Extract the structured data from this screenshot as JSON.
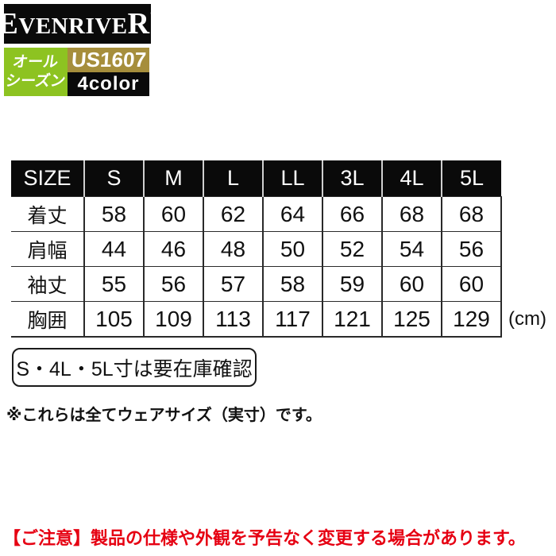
{
  "brand": {
    "logo_first": "E",
    "logo_mid": "VENRIVE",
    "logo_last": "R",
    "registered_mark": "®"
  },
  "badges": {
    "season_line1": "オール",
    "season_line2": "シーズン",
    "model": "US1607",
    "color_count": "4color"
  },
  "colors": {
    "logo_bg": "#0a0a0a",
    "season_green": "#8dc321",
    "model_gold": "#a68e3c",
    "caution_red": "#e60012"
  },
  "table": {
    "header": [
      "SIZE",
      "S",
      "M",
      "L",
      "LL",
      "3L",
      "4L",
      "5L"
    ],
    "rows": [
      {
        "label": "着丈",
        "values": [
          58,
          60,
          62,
          64,
          66,
          68,
          68
        ]
      },
      {
        "label": "肩幅",
        "values": [
          44,
          46,
          48,
          50,
          52,
          54,
          56
        ]
      },
      {
        "label": "袖丈",
        "values": [
          55,
          56,
          57,
          58,
          59,
          60,
          60
        ]
      },
      {
        "label": "胸囲",
        "values": [
          105,
          109,
          113,
          117,
          121,
          125,
          129
        ]
      }
    ],
    "unit": "(cm)"
  },
  "notes": {
    "stock_note": "S・4L・5L寸は要在庫確認",
    "size_note": "※これらは全てウェアサイズ（実寸）です。",
    "caution": "【ご注意】製品の仕様や外観を予告なく変更する場合があります。"
  }
}
